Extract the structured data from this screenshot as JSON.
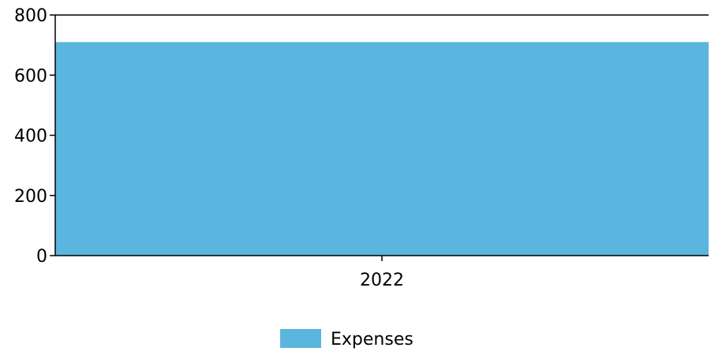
{
  "chart_data": {
    "type": "bar",
    "title": "",
    "xlabel": "",
    "ylabel": "",
    "categories": [
      "2022"
    ],
    "series": [
      {
        "name": "Expenses",
        "values": [
          710
        ],
        "color": "#5bb6df"
      }
    ],
    "ylim": [
      0,
      800
    ],
    "yticks": [
      0,
      200,
      400,
      600,
      800
    ],
    "ytick_labels": [
      "0",
      "200",
      "400",
      "600",
      "800"
    ],
    "grid": false,
    "legend": {
      "position": "bottom-center"
    }
  }
}
